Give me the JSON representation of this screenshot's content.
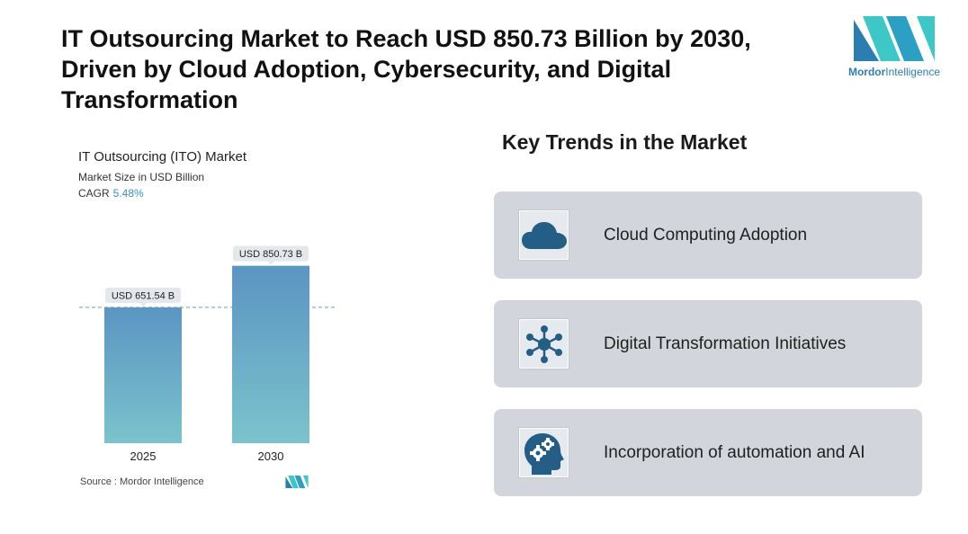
{
  "headline": "IT Outsourcing Market to Reach USD 850.73 Billion by 2030, Driven by Cloud Adoption, Cybersecurity, and Digital Transformation",
  "brand": {
    "name_bold": "Mordor",
    "name_rest": "Intelligence",
    "colors": {
      "teal": "#3ec7c7",
      "blue": "#2b7fb0"
    }
  },
  "chart_data": {
    "type": "bar",
    "title": "IT Outsourcing (ITO) Market",
    "subtitle": "Market Size in USD Billion",
    "cagr_label": "CAGR",
    "cagr_value": "5.48%",
    "categories": [
      "2025",
      "2030"
    ],
    "values": [
      651.54,
      850.73
    ],
    "data_labels": [
      "USD 651.54 B",
      "USD 850.73 B"
    ],
    "ylim": [
      0,
      1000
    ],
    "reference_line": 651.54,
    "bar_color_top": "#5b95c2",
    "bar_color_bottom": "#7bc3cc",
    "grid": false
  },
  "source": "Source :  Mordor Intelligence",
  "trends": {
    "title": "Key Trends in the Market",
    "items": [
      {
        "label": "Cloud Computing Adoption",
        "icon": "cloud-icon"
      },
      {
        "label": "Digital Transformation Initiatives",
        "icon": "network-icon"
      },
      {
        "label": "Incorporation of automation and AI",
        "icon": "head-gears-icon"
      }
    ]
  }
}
